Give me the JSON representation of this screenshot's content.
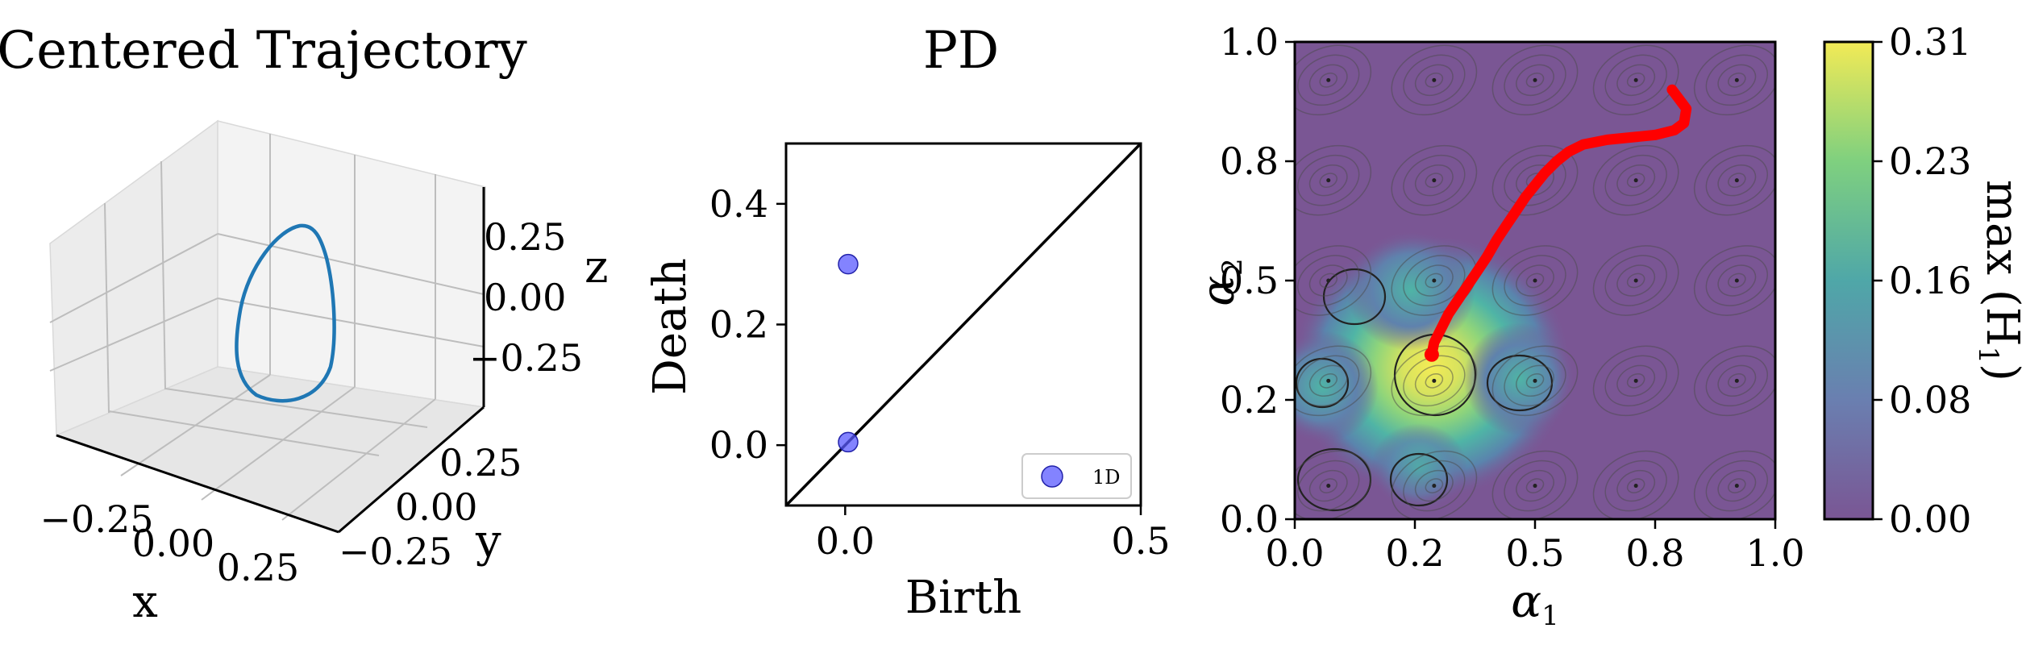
{
  "chart_data": [
    {
      "type": "line3d",
      "title": "Centered Trajectory",
      "xlabel": "x",
      "ylabel": "y",
      "zlabel": "z",
      "x_ticks": [
        "−0.25",
        "0.00",
        "0.25"
      ],
      "y_ticks": [
        "0.25",
        "0.00",
        "−0.25"
      ],
      "z_ticks": [
        "0.25",
        "0.00",
        "−0.25"
      ],
      "series": [
        {
          "color": "#1f77b4",
          "shape": "closed loop"
        }
      ]
    },
    {
      "type": "scatter",
      "title": "PD",
      "xlabel": "Birth",
      "ylabel": "Death",
      "xlim": [
        -0.1,
        0.5
      ],
      "ylim": [
        -0.1,
        0.5
      ],
      "x_ticks": [
        "0.0",
        "0.5"
      ],
      "y_ticks": [
        "0.0",
        "0.2",
        "0.4"
      ],
      "points": [
        {
          "x": 0.005,
          "y": 0.3
        },
        {
          "x": 0.005,
          "y": 0.005
        }
      ],
      "diagonal": true,
      "legend": {
        "label": "1D",
        "position": "lower-right"
      },
      "color": "#5a5aff"
    },
    {
      "type": "heatmap",
      "xlabel": "α",
      "xlabel_sub": "1",
      "ylabel": "α",
      "ylabel_sub": "2",
      "xlim": [
        0,
        1
      ],
      "ylim": [
        0,
        1
      ],
      "x_ticks": [
        "0.0",
        "0.2",
        "0.5",
        "0.8",
        "1.0"
      ],
      "y_ticks": [
        "0.0",
        "0.2",
        "0.5",
        "0.8",
        "1.0"
      ],
      "colorbar_label": "max (H",
      "colorbar_label_sub": "1",
      "colorbar_label_end": ")",
      "colorbar_ticks": [
        "0.00",
        "0.08",
        "0.16",
        "0.23",
        "0.31"
      ],
      "colorbar_range": [
        0.0,
        0.31
      ],
      "colormap": "viridis",
      "peak": {
        "x": 0.24,
        "y": 0.3,
        "value": 0.31
      },
      "path_color": "#ff0000",
      "path": [
        [
          0.285,
          0.345
        ],
        [
          0.29,
          0.37
        ],
        [
          0.305,
          0.4
        ],
        [
          0.32,
          0.43
        ],
        [
          0.34,
          0.46
        ],
        [
          0.36,
          0.49
        ],
        [
          0.38,
          0.52
        ],
        [
          0.4,
          0.55
        ],
        [
          0.42,
          0.585
        ],
        [
          0.44,
          0.615
        ],
        [
          0.46,
          0.645
        ],
        [
          0.48,
          0.675
        ],
        [
          0.5,
          0.7
        ],
        [
          0.52,
          0.725
        ],
        [
          0.545,
          0.75
        ],
        [
          0.57,
          0.77
        ],
        [
          0.6,
          0.785
        ],
        [
          0.65,
          0.795
        ],
        [
          0.7,
          0.8
        ],
        [
          0.75,
          0.805
        ],
        [
          0.79,
          0.815
        ],
        [
          0.81,
          0.83
        ],
        [
          0.815,
          0.86
        ],
        [
          0.8,
          0.88
        ],
        [
          0.785,
          0.9
        ]
      ]
    }
  ]
}
